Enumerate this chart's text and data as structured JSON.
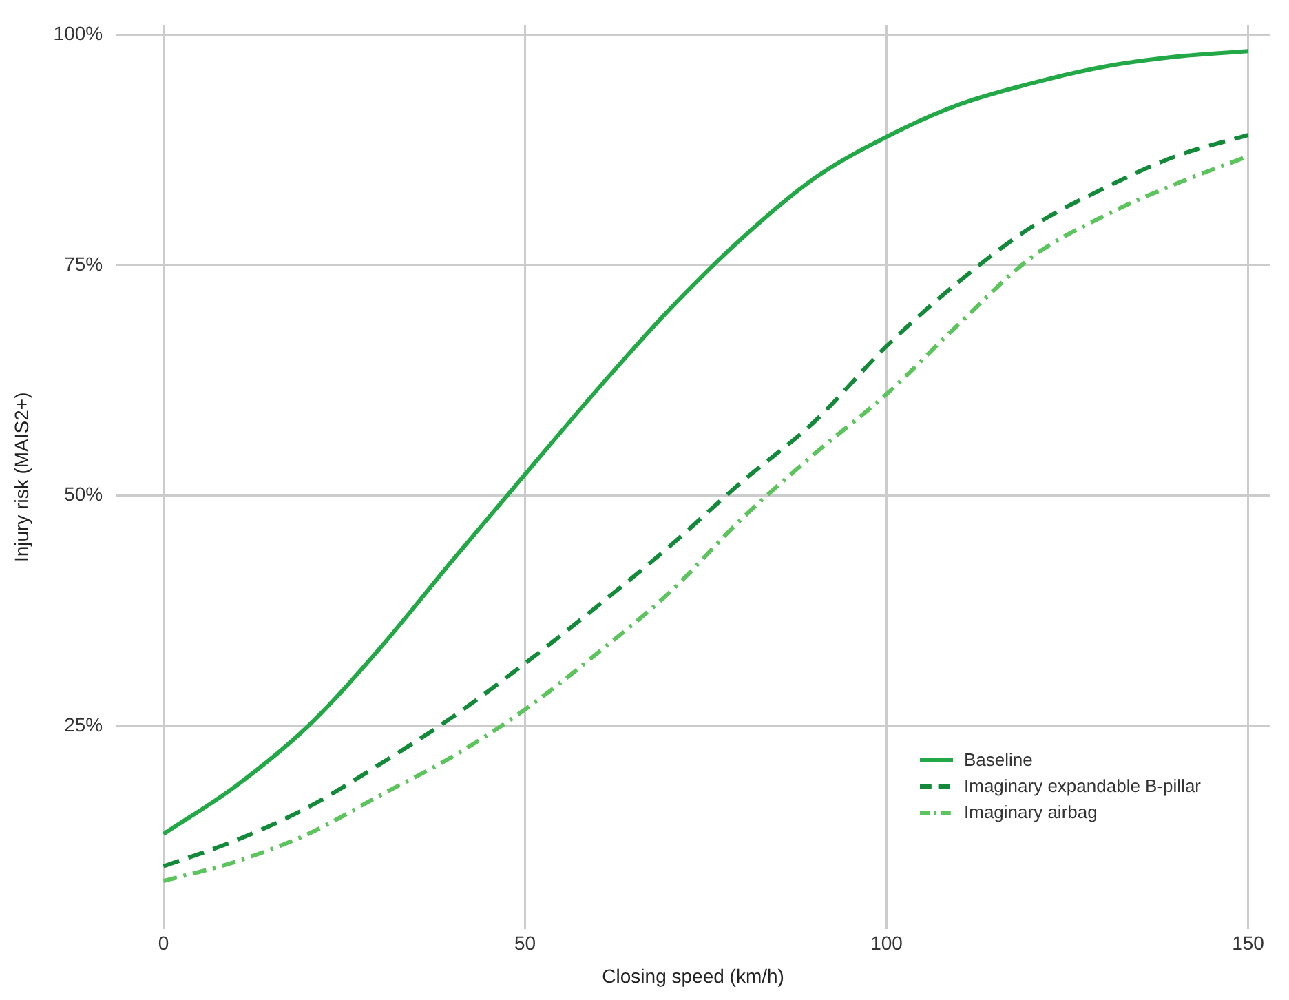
{
  "chart_data": {
    "type": "line",
    "xlabel": "Closing speed (km/h)",
    "ylabel": "Injury risk (MAIS2+)",
    "x": [
      0,
      10,
      20,
      30,
      40,
      50,
      60,
      70,
      80,
      90,
      100,
      110,
      120,
      130,
      140,
      150
    ],
    "series": [
      {
        "name": "Baseline",
        "color": "#22a846",
        "line_style": "solid",
        "values": [
          13.3,
          18.5,
          25.0,
          33.5,
          43.0,
          52.3,
          61.5,
          70.2,
          77.9,
          84.4,
          88.9,
          92.4,
          94.7,
          96.5,
          97.6,
          98.2
        ]
      },
      {
        "name": "Imaginary expandable B-pillar",
        "color": "#138a3a",
        "line_style": "dashed",
        "values": [
          9.8,
          12.6,
          16.2,
          20.9,
          26.0,
          31.8,
          38.0,
          44.5,
          51.5,
          58.0,
          66.2,
          73.2,
          79.1,
          83.3,
          86.8,
          89.1
        ]
      },
      {
        "name": "Imaginary airbag",
        "color": "#5cc45c",
        "line_style": "dashdot",
        "values": [
          8.2,
          10.3,
          13.3,
          17.5,
          21.7,
          26.8,
          32.9,
          39.5,
          47.5,
          54.5,
          61.0,
          68.6,
          75.8,
          80.3,
          83.8,
          86.8
        ]
      }
    ],
    "xlim": [
      -6.5,
      153
    ],
    "xticks": [
      0,
      50,
      100,
      150
    ],
    "ylim": [
      3,
      101
    ],
    "yticks": [
      {
        "value": 25,
        "label": "25%"
      },
      {
        "value": 50,
        "label": "50%"
      },
      {
        "value": 75,
        "label": "75%"
      },
      {
        "value": 100,
        "label": "100%"
      }
    ],
    "grid": true,
    "legend": "bottom right",
    "marker": "none"
  }
}
